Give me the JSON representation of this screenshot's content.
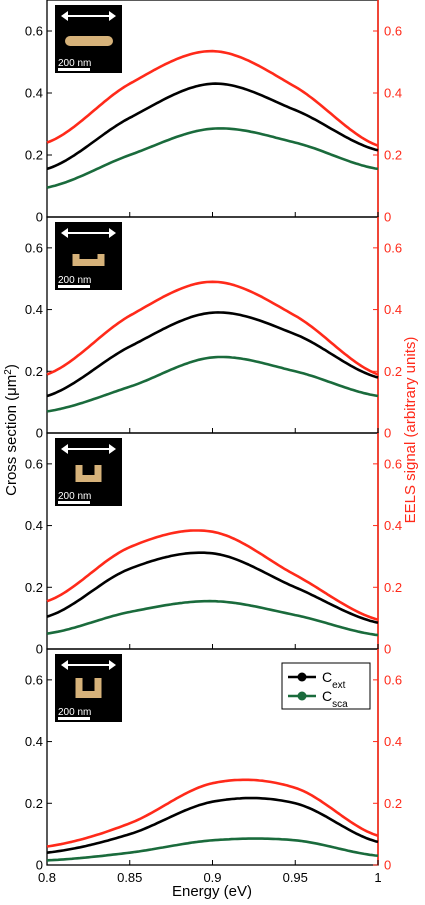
{
  "colors": {
    "ext": "#000000",
    "sca": "#1a6b3c",
    "eels": "#ff2a1a",
    "rod": "#d6b27a",
    "inset_bg": "#000000"
  },
  "chart_data": {
    "type": "line",
    "xlabel": "Energy (eV)",
    "ylabel_left": "Cross section (μm",
    "ylabel_left_sup": "2",
    "ylabel_left_end": ")",
    "ylabel_right": "EELS signal (arbitrary units)",
    "xlim": [
      0.8,
      1.0
    ],
    "ylim": [
      0,
      0.7
    ],
    "x_ticks": [
      "0.8",
      "0.85",
      "0.9",
      "0.95",
      "1"
    ],
    "y_ticks": [
      "0",
      "0.2",
      "0.4",
      "0.6"
    ],
    "y_ticks_right": [
      "0",
      "0.2",
      "0.4",
      "0.6"
    ],
    "legend": {
      "entries": [
        {
          "series": "ext",
          "label_main": "C",
          "label_sub": "ext"
        },
        {
          "series": "sca",
          "label_main": "C",
          "label_sub": "sca"
        }
      ]
    },
    "panels": [
      {
        "inset_shape": "rod",
        "scale_bar_label": "200 nm",
        "x": [
          0.8,
          0.85,
          0.9,
          0.95,
          1.0
        ],
        "series": [
          {
            "key": "eels",
            "axis": "right",
            "center": 0.896,
            "y": [
              0.24,
              0.43,
              0.535,
              0.42,
              0.23
            ]
          },
          {
            "key": "ext",
            "axis": "left",
            "center": 0.905,
            "y": [
              0.155,
              0.32,
              0.43,
              0.345,
              0.215
            ]
          },
          {
            "key": "sca",
            "axis": "left",
            "center": 0.91,
            "y": [
              0.095,
              0.2,
              0.285,
              0.24,
              0.155
            ]
          }
        ]
      },
      {
        "inset_shape": "u_shallow",
        "scale_bar_label": "200 nm",
        "x": [
          0.8,
          0.85,
          0.9,
          0.95,
          1.0
        ],
        "series": [
          {
            "key": "eels",
            "axis": "right",
            "center": 0.9,
            "y": [
              0.19,
              0.38,
              0.49,
              0.38,
              0.19
            ]
          },
          {
            "key": "ext",
            "axis": "left",
            "center": 0.905,
            "y": [
              0.12,
              0.28,
              0.39,
              0.32,
              0.18
            ]
          },
          {
            "key": "sca",
            "axis": "left",
            "center": 0.91,
            "y": [
              0.07,
              0.15,
              0.245,
              0.2,
              0.12
            ]
          }
        ]
      },
      {
        "inset_shape": "u_medium",
        "scale_bar_label": "200 nm",
        "x": [
          0.8,
          0.85,
          0.9,
          0.95,
          1.0
        ],
        "series": [
          {
            "key": "eels",
            "axis": "right",
            "center": 0.88,
            "y": [
              0.155,
              0.33,
              0.38,
              0.24,
              0.095
            ]
          },
          {
            "key": "ext",
            "axis": "left",
            "center": 0.882,
            "y": [
              0.105,
              0.26,
              0.31,
              0.2,
              0.085
            ]
          },
          {
            "key": "sca",
            "axis": "left",
            "center": 0.885,
            "y": [
              0.05,
              0.12,
              0.155,
              0.11,
              0.045
            ]
          }
        ]
      },
      {
        "inset_shape": "u_deep",
        "scale_bar_label": "200 nm",
        "show_legend": true,
        "x": [
          0.8,
          0.85,
          0.9,
          0.95,
          1.0
        ],
        "series": [
          {
            "key": "eels",
            "axis": "right",
            "center": 0.915,
            "y": [
              0.06,
              0.135,
              0.265,
              0.25,
              0.095
            ]
          },
          {
            "key": "ext",
            "axis": "left",
            "center": 0.915,
            "y": [
              0.04,
              0.1,
              0.205,
              0.2,
              0.075
            ]
          },
          {
            "key": "sca",
            "axis": "left",
            "center": 0.915,
            "y": [
              0.015,
              0.04,
              0.08,
              0.08,
              0.03
            ]
          }
        ]
      }
    ]
  }
}
